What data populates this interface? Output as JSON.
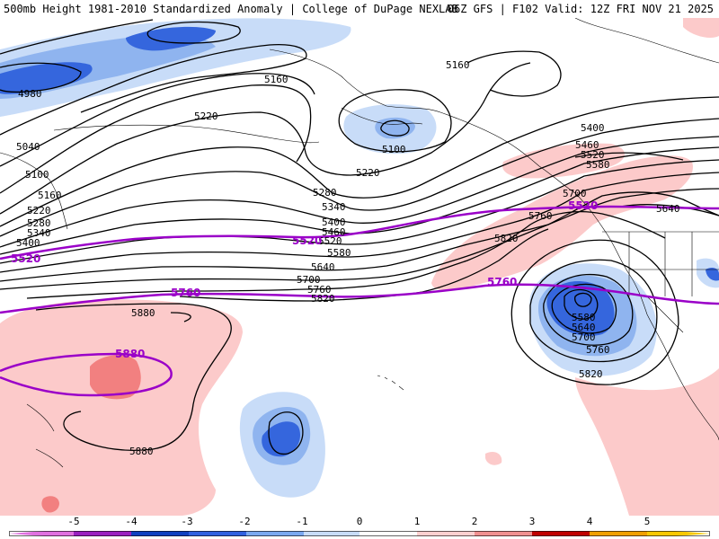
{
  "header": {
    "left_title": "500mb Height 1981-2010 Standardized Anomaly | College of DuPage NEXLAB",
    "right_title": "06Z GFS | F102 Valid: 12Z FRI NOV 21 2025"
  },
  "contour_labels": [
    {
      "id": "4980",
      "text": "4980"
    },
    {
      "id": "5040",
      "text": "5040"
    },
    {
      "id": "5100w",
      "text": "5100"
    },
    {
      "id": "5160w",
      "text": "5160"
    },
    {
      "id": "5220w",
      "text": "5220"
    },
    {
      "id": "5280w",
      "text": "5280"
    },
    {
      "id": "5340w",
      "text": "5340"
    },
    {
      "id": "5400w",
      "text": "5400"
    },
    {
      "id": "5160a",
      "text": "5160"
    },
    {
      "id": "5220a",
      "text": "5220"
    },
    {
      "id": "5100a",
      "text": "5100"
    },
    {
      "id": "5160b",
      "text": "5160"
    },
    {
      "id": "5220b",
      "text": "5220"
    },
    {
      "id": "5280b",
      "text": "5280"
    },
    {
      "id": "5340b",
      "text": "5340"
    },
    {
      "id": "5400b",
      "text": "5400"
    },
    {
      "id": "5460b",
      "text": "5460"
    },
    {
      "id": "5520b",
      "text": "5520"
    },
    {
      "id": "5580b",
      "text": "5580"
    },
    {
      "id": "5640b",
      "text": "5640"
    },
    {
      "id": "5700b",
      "text": "5700"
    },
    {
      "id": "5760b",
      "text": "5760"
    },
    {
      "id": "5820b",
      "text": "5820"
    },
    {
      "id": "5880a",
      "text": "5880"
    },
    {
      "id": "5880b",
      "text": "5880"
    },
    {
      "id": "5400c",
      "text": "5400"
    },
    {
      "id": "5460c",
      "text": "5460"
    },
    {
      "id": "5520c",
      "text": "5520"
    },
    {
      "id": "5580c",
      "text": "5580"
    },
    {
      "id": "5700c",
      "text": "5700"
    },
    {
      "id": "5760c",
      "text": "5760"
    },
    {
      "id": "5820c",
      "text": "5820"
    },
    {
      "id": "5640c",
      "text": "5640"
    },
    {
      "id": "5580l",
      "text": "5580"
    },
    {
      "id": "5640l",
      "text": "5640"
    },
    {
      "id": "5700l",
      "text": "5700"
    },
    {
      "id": "5760l",
      "text": "5760"
    },
    {
      "id": "5820l",
      "text": "5820"
    }
  ],
  "purple_labels": [
    {
      "id": "p5520w",
      "text": "5520"
    },
    {
      "id": "p5520m",
      "text": "5520"
    },
    {
      "id": "p5520e",
      "text": "5520"
    },
    {
      "id": "p5760w",
      "text": "5760"
    },
    {
      "id": "p5760e",
      "text": "5760"
    },
    {
      "id": "p5880",
      "text": "5880"
    }
  ],
  "colorbar": {
    "ticks": [
      "-5",
      "-4",
      "-3",
      "-2",
      "-1",
      "0",
      "1",
      "2",
      "3",
      "4",
      "5"
    ],
    "colors": [
      "#e070e0",
      "#9a20c0",
      "#1040c0",
      "#3060e0",
      "#7aa8f0",
      "#c8dcf8",
      "#ffffff",
      "#ffd0d0",
      "#f09090",
      "#e04040",
      "#c00000",
      "#f0a000",
      "#f8c800"
    ]
  },
  "legend_colors": {
    "neg1": "#c8dcf8",
    "neg2": "#8fb4ef",
    "neg3": "#3566dd",
    "pos1": "#fccaca",
    "pos2": "#f28080",
    "purple": "#9a00c8"
  }
}
